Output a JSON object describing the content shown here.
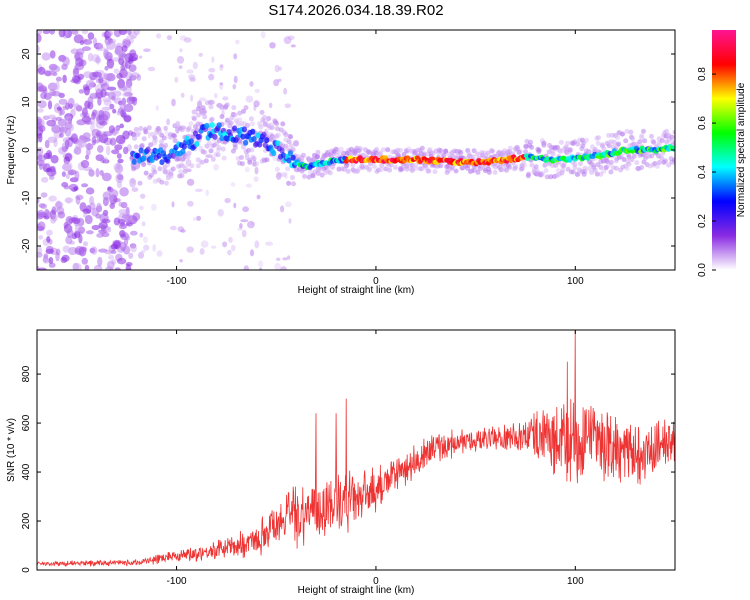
{
  "title": "S174.2026.034.18.39.R02",
  "chart_data": [
    {
      "type": "heatmap",
      "name": "spectrogram",
      "xlabel": "Height of straight line (km)",
      "ylabel": "Frequency (Hz)",
      "xlim": [
        -170,
        150
      ],
      "ylim": [
        -25,
        25
      ],
      "xticks": [
        -100,
        0,
        100
      ],
      "yticks": [
        -20,
        -10,
        0,
        10,
        20
      ],
      "ridge": [
        {
          "x": -120,
          "f": -1
        },
        {
          "x": -105,
          "f": -1.5
        },
        {
          "x": -95,
          "f": 1
        },
        {
          "x": -85,
          "f": 4
        },
        {
          "x": -75,
          "f": 3.5
        },
        {
          "x": -60,
          "f": 2.5
        },
        {
          "x": -50,
          "f": 0.5
        },
        {
          "x": -42,
          "f": -2
        },
        {
          "x": -35,
          "f": -3.5
        },
        {
          "x": -25,
          "f": -2.5
        },
        {
          "x": -15,
          "f": -2
        },
        {
          "x": 0,
          "f": -2
        },
        {
          "x": 20,
          "f": -2
        },
        {
          "x": 40,
          "f": -2.5
        },
        {
          "x": 55,
          "f": -2.5
        },
        {
          "x": 75,
          "f": -1.5
        },
        {
          "x": 90,
          "f": -2
        },
        {
          "x": 105,
          "f": -1.5
        },
        {
          "x": 115,
          "f": -1
        },
        {
          "x": 125,
          "f": 0
        },
        {
          "x": 140,
          "f": 0
        },
        {
          "x": 150,
          "f": 0.5
        }
      ],
      "colorbar": {
        "label": "Normalized spectral amplitude",
        "ticks": [
          "0.0",
          "0.2",
          "0.4",
          "0.6",
          "0.8"
        ],
        "tick_values": [
          0,
          0.2,
          0.4,
          0.6,
          0.8
        ],
        "range": [
          0,
          0.98
        ],
        "colors": [
          "#ffffff",
          "#8a2be2",
          "#0000ff",
          "#00ffff",
          "#00ff00",
          "#ffff00",
          "#ff0000",
          "#ff1493"
        ]
      }
    },
    {
      "type": "line",
      "name": "snr",
      "xlabel": "Height of straight line (km)",
      "ylabel": "SNR (10 * v/v)",
      "xlim": [
        -170,
        150
      ],
      "ylim": [
        0,
        980
      ],
      "xticks": [
        -100,
        0,
        100
      ],
      "yticks": [
        0,
        200,
        400,
        600,
        800
      ],
      "color": "#ee3333",
      "envelope": [
        {
          "x": -170,
          "mean": 25,
          "noise": 12
        },
        {
          "x": -120,
          "mean": 30,
          "noise": 15
        },
        {
          "x": -100,
          "mean": 60,
          "noise": 30
        },
        {
          "x": -80,
          "mean": 80,
          "noise": 45
        },
        {
          "x": -60,
          "mean": 120,
          "noise": 70
        },
        {
          "x": -50,
          "mean": 200,
          "noise": 120
        },
        {
          "x": -40,
          "mean": 230,
          "noise": 150
        },
        {
          "x": -30,
          "mean": 250,
          "noise": 160
        },
        {
          "x": -15,
          "mean": 280,
          "noise": 150
        },
        {
          "x": -5,
          "mean": 300,
          "noise": 110
        },
        {
          "x": 5,
          "mean": 360,
          "noise": 90
        },
        {
          "x": 20,
          "mean": 440,
          "noise": 80
        },
        {
          "x": 30,
          "mean": 500,
          "noise": 70
        },
        {
          "x": 50,
          "mean": 530,
          "noise": 60
        },
        {
          "x": 70,
          "mean": 540,
          "noise": 70
        },
        {
          "x": 80,
          "mean": 560,
          "noise": 120
        },
        {
          "x": 90,
          "mean": 520,
          "noise": 200
        },
        {
          "x": 100,
          "mean": 500,
          "noise": 230
        },
        {
          "x": 110,
          "mean": 520,
          "noise": 180
        },
        {
          "x": 120,
          "mean": 500,
          "noise": 170
        },
        {
          "x": 130,
          "mean": 480,
          "noise": 160
        },
        {
          "x": 140,
          "mean": 500,
          "noise": 140
        },
        {
          "x": 150,
          "mean": 520,
          "noise": 130
        }
      ],
      "spikes": [
        {
          "x": -30,
          "value": 640
        },
        {
          "x": -20,
          "value": 640
        },
        {
          "x": -15,
          "value": 700
        },
        {
          "x": 100,
          "value": 980
        },
        {
          "x": 96,
          "value": 850
        }
      ]
    }
  ]
}
